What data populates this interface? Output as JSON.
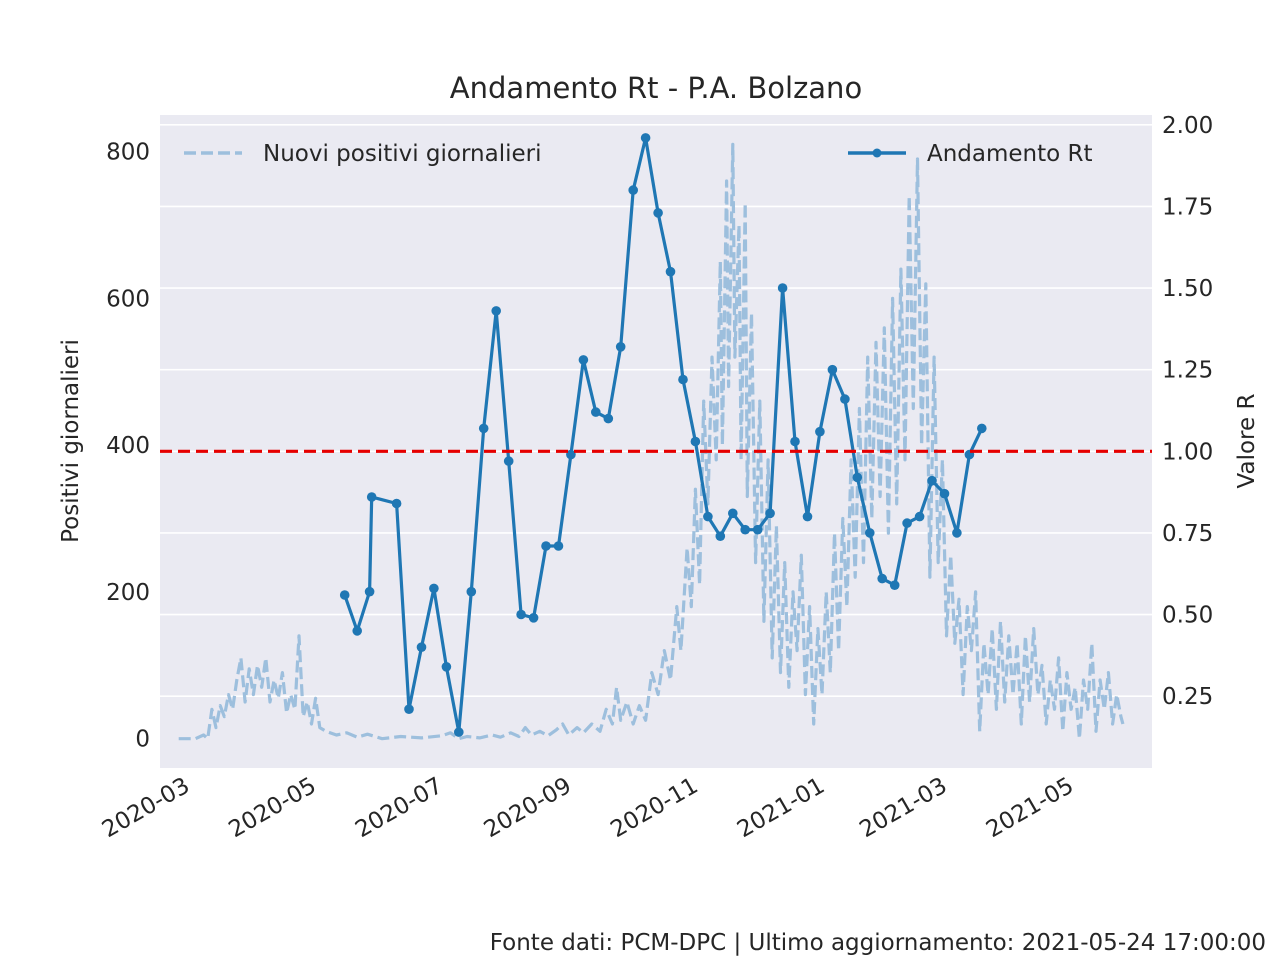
{
  "chart_data": {
    "type": "line",
    "title": "Andamento Rt - P.A. Bolzano",
    "ylabel_left": "Positivi giornalieri",
    "ylabel_right": "Valore R",
    "footer": "Fonte dati: PCM-DPC | Ultimo aggiornamento: 2021-05-24 17:00:00",
    "grid": true,
    "legend_left_placement": "top-left",
    "legend_right_placement": "top-right",
    "x_range": [
      "2020-02-15",
      "2021-06-07"
    ],
    "x_ticks": [
      "2020-03",
      "2020-05",
      "2020-07",
      "2020-09",
      "2020-11",
      "2021-01",
      "2021-03",
      "2021-05"
    ],
    "y_left_range": [
      -40,
      850
    ],
    "y_left_ticks": [
      0,
      200,
      400,
      600,
      800
    ],
    "y_right_range": [
      0.03,
      2.03
    ],
    "y_right_ticks": [
      "0.25",
      "0.50",
      "0.75",
      "1.00",
      "1.25",
      "1.50",
      "1.75",
      "2.00"
    ],
    "threshold": {
      "value": 1.0,
      "axis": "right",
      "color": "#e60000"
    },
    "series": [
      {
        "name": "Nuovi positivi giornalieri",
        "axis": "left",
        "style": "dashed",
        "color": "#9dbfdd",
        "points": [
          [
            "2020-02-24",
            0
          ],
          [
            "2020-03-03",
            0
          ],
          [
            "2020-03-07",
            5
          ],
          [
            "2020-03-09",
            0
          ],
          [
            "2020-03-11",
            40
          ],
          [
            "2020-03-13",
            15
          ],
          [
            "2020-03-15",
            45
          ],
          [
            "2020-03-17",
            30
          ],
          [
            "2020-03-19",
            60
          ],
          [
            "2020-03-21",
            40
          ],
          [
            "2020-03-23",
            80
          ],
          [
            "2020-03-25",
            110
          ],
          [
            "2020-03-27",
            50
          ],
          [
            "2020-03-29",
            95
          ],
          [
            "2020-03-31",
            60
          ],
          [
            "2020-04-02",
            100
          ],
          [
            "2020-04-04",
            70
          ],
          [
            "2020-04-06",
            110
          ],
          [
            "2020-04-08",
            50
          ],
          [
            "2020-04-10",
            80
          ],
          [
            "2020-04-12",
            55
          ],
          [
            "2020-04-14",
            90
          ],
          [
            "2020-04-16",
            35
          ],
          [
            "2020-04-18",
            60
          ],
          [
            "2020-04-20",
            40
          ],
          [
            "2020-04-22",
            140
          ],
          [
            "2020-04-24",
            30
          ],
          [
            "2020-04-26",
            50
          ],
          [
            "2020-04-28",
            20
          ],
          [
            "2020-04-30",
            55
          ],
          [
            "2020-05-02",
            15
          ],
          [
            "2020-05-05",
            10
          ],
          [
            "2020-05-10",
            5
          ],
          [
            "2020-05-15",
            8
          ],
          [
            "2020-05-20",
            2
          ],
          [
            "2020-05-25",
            6
          ],
          [
            "2020-06-01",
            0
          ],
          [
            "2020-06-10",
            3
          ],
          [
            "2020-06-20",
            1
          ],
          [
            "2020-06-30",
            4
          ],
          [
            "2020-07-04",
            8
          ],
          [
            "2020-07-08",
            0
          ],
          [
            "2020-07-12",
            3
          ],
          [
            "2020-07-18",
            1
          ],
          [
            "2020-07-24",
            5
          ],
          [
            "2020-07-28",
            2
          ],
          [
            "2020-08-02",
            8
          ],
          [
            "2020-08-06",
            3
          ],
          [
            "2020-08-09",
            15
          ],
          [
            "2020-08-12",
            5
          ],
          [
            "2020-08-16",
            10
          ],
          [
            "2020-08-20",
            4
          ],
          [
            "2020-08-24",
            12
          ],
          [
            "2020-08-27",
            20
          ],
          [
            "2020-08-30",
            5
          ],
          [
            "2020-09-03",
            15
          ],
          [
            "2020-09-06",
            8
          ],
          [
            "2020-09-10",
            20
          ],
          [
            "2020-09-14",
            10
          ],
          [
            "2020-09-17",
            40
          ],
          [
            "2020-09-20",
            20
          ],
          [
            "2020-09-22",
            70
          ],
          [
            "2020-09-24",
            25
          ],
          [
            "2020-09-27",
            50
          ],
          [
            "2020-09-30",
            20
          ],
          [
            "2020-10-03",
            45
          ],
          [
            "2020-10-06",
            25
          ],
          [
            "2020-10-09",
            90
          ],
          [
            "2020-10-12",
            60
          ],
          [
            "2020-10-15",
            120
          ],
          [
            "2020-10-18",
            80
          ],
          [
            "2020-10-21",
            180
          ],
          [
            "2020-10-23",
            120
          ],
          [
            "2020-10-26",
            260
          ],
          [
            "2020-10-28",
            180
          ],
          [
            "2020-10-30",
            340
          ],
          [
            "2020-11-01",
            210
          ],
          [
            "2020-11-03",
            460
          ],
          [
            "2020-11-05",
            320
          ],
          [
            "2020-11-07",
            520
          ],
          [
            "2020-11-09",
            380
          ],
          [
            "2020-11-11",
            650
          ],
          [
            "2020-11-12",
            400
          ],
          [
            "2020-11-14",
            760
          ],
          [
            "2020-11-15",
            480
          ],
          [
            "2020-11-17",
            810
          ],
          [
            "2020-11-18",
            520
          ],
          [
            "2020-11-20",
            700
          ],
          [
            "2020-11-21",
            380
          ],
          [
            "2020-11-23",
            730
          ],
          [
            "2020-11-24",
            330
          ],
          [
            "2020-11-26",
            580
          ],
          [
            "2020-11-28",
            240
          ],
          [
            "2020-11-30",
            460
          ],
          [
            "2020-12-02",
            160
          ],
          [
            "2020-12-04",
            380
          ],
          [
            "2020-12-06",
            110
          ],
          [
            "2020-12-08",
            290
          ],
          [
            "2020-12-10",
            90
          ],
          [
            "2020-12-12",
            240
          ],
          [
            "2020-12-14",
            70
          ],
          [
            "2020-12-16",
            200
          ],
          [
            "2020-12-18",
            120
          ],
          [
            "2020-12-20",
            250
          ],
          [
            "2020-12-22",
            60
          ],
          [
            "2020-12-24",
            180
          ],
          [
            "2020-12-26",
            20
          ],
          [
            "2020-12-28",
            150
          ],
          [
            "2020-12-30",
            60
          ],
          [
            "2021-01-01",
            200
          ],
          [
            "2021-01-03",
            90
          ],
          [
            "2021-01-05",
            280
          ],
          [
            "2021-01-07",
            120
          ],
          [
            "2021-01-09",
            300
          ],
          [
            "2021-01-11",
            180
          ],
          [
            "2021-01-13",
            380
          ],
          [
            "2021-01-15",
            220
          ],
          [
            "2021-01-17",
            450
          ],
          [
            "2021-01-19",
            240
          ],
          [
            "2021-01-21",
            520
          ],
          [
            "2021-01-23",
            300
          ],
          [
            "2021-01-25",
            540
          ],
          [
            "2021-01-27",
            330
          ],
          [
            "2021-01-29",
            560
          ],
          [
            "2021-01-31",
            280
          ],
          [
            "2021-02-02",
            600
          ],
          [
            "2021-02-04",
            320
          ],
          [
            "2021-02-06",
            640
          ],
          [
            "2021-02-08",
            380
          ],
          [
            "2021-02-10",
            740
          ],
          [
            "2021-02-12",
            450
          ],
          [
            "2021-02-14",
            790
          ],
          [
            "2021-02-16",
            400
          ],
          [
            "2021-02-18",
            620
          ],
          [
            "2021-02-20",
            220
          ],
          [
            "2021-02-22",
            520
          ],
          [
            "2021-02-24",
            240
          ],
          [
            "2021-02-26",
            380
          ],
          [
            "2021-02-28",
            140
          ],
          [
            "2021-03-02",
            250
          ],
          [
            "2021-03-04",
            130
          ],
          [
            "2021-03-06",
            190
          ],
          [
            "2021-03-08",
            60
          ],
          [
            "2021-03-10",
            180
          ],
          [
            "2021-03-12",
            120
          ],
          [
            "2021-03-14",
            200
          ],
          [
            "2021-03-16",
            10
          ],
          [
            "2021-03-18",
            130
          ],
          [
            "2021-03-20",
            60
          ],
          [
            "2021-03-22",
            150
          ],
          [
            "2021-03-24",
            40
          ],
          [
            "2021-03-26",
            160
          ],
          [
            "2021-03-28",
            50
          ],
          [
            "2021-03-30",
            140
          ],
          [
            "2021-04-01",
            60
          ],
          [
            "2021-04-03",
            130
          ],
          [
            "2021-04-05",
            20
          ],
          [
            "2021-04-07",
            140
          ],
          [
            "2021-04-09",
            50
          ],
          [
            "2021-04-11",
            150
          ],
          [
            "2021-04-13",
            60
          ],
          [
            "2021-04-15",
            100
          ],
          [
            "2021-04-17",
            20
          ],
          [
            "2021-04-19",
            80
          ],
          [
            "2021-04-21",
            40
          ],
          [
            "2021-04-23",
            110
          ],
          [
            "2021-04-25",
            10
          ],
          [
            "2021-04-27",
            90
          ],
          [
            "2021-04-29",
            40
          ],
          [
            "2021-05-01",
            70
          ],
          [
            "2021-05-03",
            0
          ],
          [
            "2021-05-05",
            80
          ],
          [
            "2021-05-07",
            40
          ],
          [
            "2021-05-09",
            130
          ],
          [
            "2021-05-11",
            10
          ],
          [
            "2021-05-13",
            80
          ],
          [
            "2021-05-15",
            40
          ],
          [
            "2021-05-17",
            90
          ],
          [
            "2021-05-19",
            20
          ],
          [
            "2021-05-21",
            60
          ],
          [
            "2021-05-23",
            30
          ],
          [
            "2021-05-24",
            20
          ]
        ]
      },
      {
        "name": "Andamento Rt",
        "axis": "right",
        "style": "solid-marker",
        "color": "#1f77b4",
        "points": [
          [
            "2020-05-14",
            0.56
          ],
          [
            "2020-05-20",
            0.45
          ],
          [
            "2020-05-26",
            0.57
          ],
          [
            "2020-05-27",
            0.86
          ],
          [
            "2020-06-08",
            0.84
          ],
          [
            "2020-06-14",
            0.21
          ],
          [
            "2020-06-20",
            0.4
          ],
          [
            "2020-06-26",
            0.58
          ],
          [
            "2020-07-02",
            0.34
          ],
          [
            "2020-07-08",
            0.14
          ],
          [
            "2020-07-14",
            0.57
          ],
          [
            "2020-07-20",
            1.07
          ],
          [
            "2020-07-26",
            1.43
          ],
          [
            "2020-08-01",
            0.97
          ],
          [
            "2020-08-07",
            0.5
          ],
          [
            "2020-08-13",
            0.49
          ],
          [
            "2020-08-19",
            0.71
          ],
          [
            "2020-08-25",
            0.71
          ],
          [
            "2020-08-31",
            0.99
          ],
          [
            "2020-09-06",
            1.28
          ],
          [
            "2020-09-12",
            1.12
          ],
          [
            "2020-09-18",
            1.1
          ],
          [
            "2020-09-24",
            1.32
          ],
          [
            "2020-09-30",
            1.8
          ],
          [
            "2020-10-06",
            1.96
          ],
          [
            "2020-10-12",
            1.73
          ],
          [
            "2020-10-18",
            1.55
          ],
          [
            "2020-10-24",
            1.22
          ],
          [
            "2020-10-30",
            1.03
          ],
          [
            "2020-11-05",
            0.8
          ],
          [
            "2020-11-11",
            0.74
          ],
          [
            "2020-11-17",
            0.81
          ],
          [
            "2020-11-23",
            0.76
          ],
          [
            "2020-11-29",
            0.76
          ],
          [
            "2020-12-05",
            0.81
          ],
          [
            "2020-12-11",
            1.5
          ],
          [
            "2020-12-17",
            1.03
          ],
          [
            "2020-12-23",
            0.8
          ],
          [
            "2020-12-29",
            1.06
          ],
          [
            "2021-01-04",
            1.25
          ],
          [
            "2021-01-10",
            1.16
          ],
          [
            "2021-01-16",
            0.92
          ],
          [
            "2021-01-22",
            0.75
          ],
          [
            "2021-01-28",
            0.61
          ],
          [
            "2021-02-03",
            0.59
          ],
          [
            "2021-02-09",
            0.78
          ],
          [
            "2021-02-15",
            0.8
          ],
          [
            "2021-02-21",
            0.91
          ],
          [
            "2021-02-27",
            0.87
          ],
          [
            "2021-03-05",
            0.75
          ],
          [
            "2021-03-11",
            0.99
          ],
          [
            "2021-03-17",
            1.07
          ]
        ]
      }
    ]
  }
}
